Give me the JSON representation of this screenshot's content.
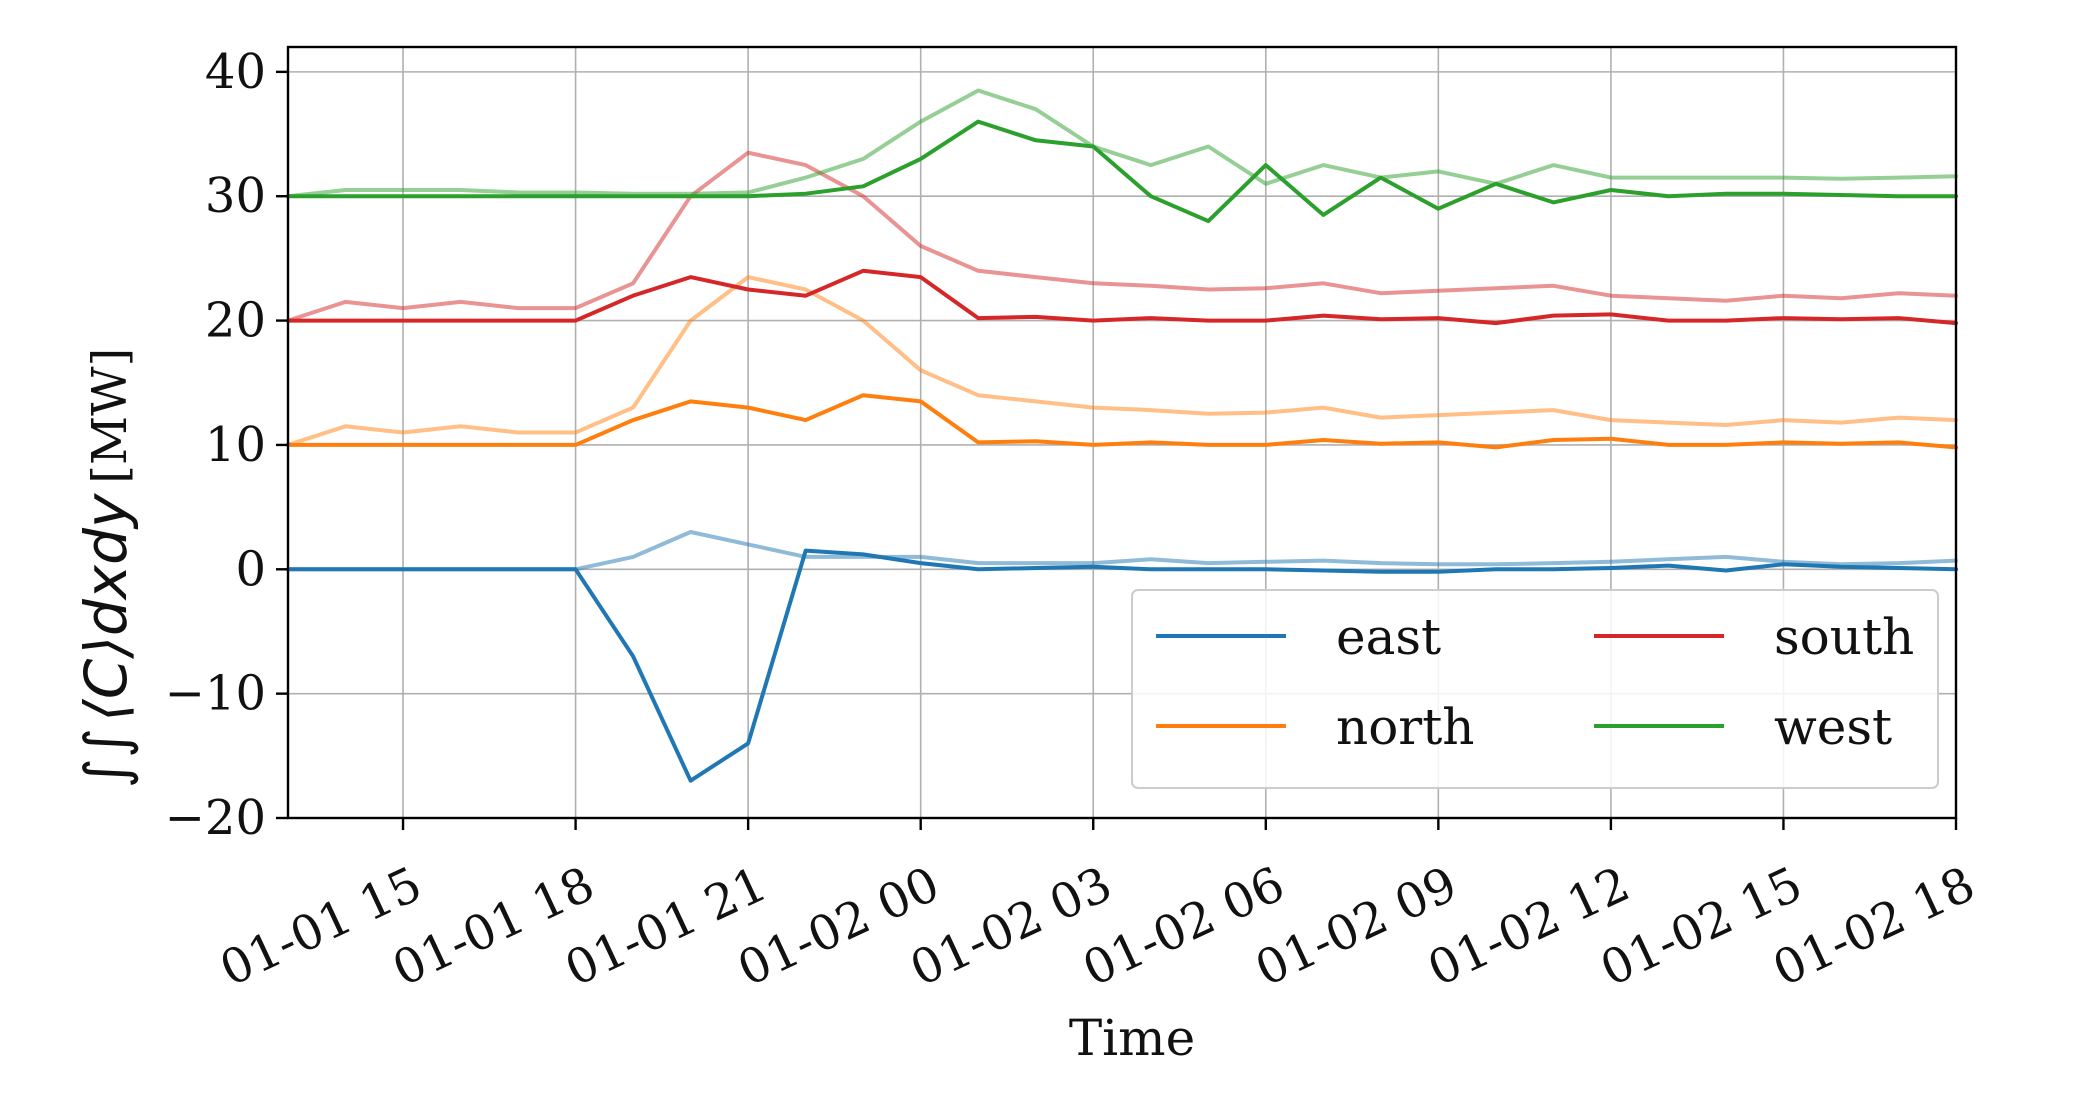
{
  "chart_data": {
    "type": "line",
    "xlabel": "Time",
    "ylabel": {
      "integral": "∫∫",
      "expression": "⟨C⟩dxdy",
      "unit": "[MW]"
    },
    "ylim": [
      -20,
      42
    ],
    "xlim": [
      "01-01 13:00",
      "01-02 18:00"
    ],
    "x_ticks": [
      "01-01 15",
      "01-01 18",
      "01-01 21",
      "01-02 00",
      "01-02 03",
      "01-02 06",
      "01-02 09",
      "01-02 12",
      "01-02 15",
      "01-02 18"
    ],
    "y_ticks": [
      -20,
      -10,
      0,
      10,
      20,
      30,
      40
    ],
    "grid": true,
    "legend": {
      "placement": "lower-right",
      "columns": 2,
      "entries": [
        "east",
        "south",
        "north",
        "west"
      ]
    },
    "x_hours": [
      13,
      14,
      15,
      16,
      17,
      18,
      19,
      20,
      21,
      22,
      23,
      24,
      25,
      26,
      27,
      28,
      29,
      30,
      31,
      32,
      33,
      34,
      35,
      36,
      37,
      38,
      39,
      40,
      41,
      42
    ],
    "series": [
      {
        "name": "east",
        "color": "#1f77b4",
        "opacity": 1,
        "values": [
          0,
          0,
          0,
          0,
          0,
          0,
          -7,
          -17,
          -14,
          1.5,
          1.2,
          0.5,
          0,
          0.1,
          0.2,
          0,
          0,
          0,
          -0.1,
          -0.2,
          -0.2,
          0,
          0,
          0.1,
          0.3,
          -0.1,
          0.4,
          0.2,
          0.1,
          0
        ]
      },
      {
        "name": "east (light)",
        "color": "#1f77b4",
        "opacity": 0.5,
        "values": [
          0,
          0,
          0,
          0,
          0,
          0,
          1,
          3,
          2,
          1,
          1,
          1,
          0.5,
          0.5,
          0.5,
          0.8,
          0.5,
          0.6,
          0.7,
          0.5,
          0.4,
          0.4,
          0.5,
          0.6,
          0.8,
          1,
          0.6,
          0.4,
          0.5,
          0.7
        ]
      },
      {
        "name": "north",
        "color": "#ff7f0e",
        "opacity": 1,
        "values": [
          10,
          10,
          10,
          10,
          10,
          10,
          12,
          13.5,
          13,
          12,
          14,
          13.5,
          10.2,
          10.3,
          10,
          10.2,
          10,
          10,
          10.4,
          10.1,
          10.2,
          9.8,
          10.4,
          10.5,
          10,
          10,
          10.2,
          10.1,
          10.2,
          9.8
        ]
      },
      {
        "name": "north (light)",
        "color": "#ff7f0e",
        "opacity": 0.5,
        "values": [
          10,
          11.5,
          11,
          11.5,
          11,
          11,
          13,
          20,
          23.5,
          22.5,
          20,
          16,
          14,
          13.5,
          13,
          12.8,
          12.5,
          12.6,
          13,
          12.2,
          12.4,
          12.6,
          12.8,
          12,
          11.8,
          11.6,
          12,
          11.8,
          12.2,
          12
        ]
      },
      {
        "name": "south",
        "color": "#d62728",
        "opacity": 1,
        "values": [
          20,
          20,
          20,
          20,
          20,
          20,
          22,
          23.5,
          22.5,
          22,
          24,
          23.5,
          20.2,
          20.3,
          20,
          20.2,
          20,
          20,
          20.4,
          20.1,
          20.2,
          19.8,
          20.4,
          20.5,
          20,
          20,
          20.2,
          20.1,
          20.2,
          19.8
        ]
      },
      {
        "name": "south (light)",
        "color": "#d62728",
        "opacity": 0.5,
        "values": [
          20,
          21.5,
          21,
          21.5,
          21,
          21,
          23,
          30,
          33.5,
          32.5,
          30,
          26,
          24,
          23.5,
          23,
          22.8,
          22.5,
          22.6,
          23,
          22.2,
          22.4,
          22.6,
          22.8,
          22,
          21.8,
          21.6,
          22,
          21.8,
          22.2,
          22
        ]
      },
      {
        "name": "west",
        "color": "#2ca02c",
        "opacity": 1,
        "values": [
          30,
          30,
          30,
          30,
          30,
          30,
          30,
          30,
          30,
          30.2,
          30.8,
          33,
          36,
          34.5,
          34,
          30,
          28,
          32.5,
          28.5,
          31.5,
          29,
          31,
          29.5,
          30.5,
          30,
          30.2,
          30.2,
          30.1,
          30,
          30
        ]
      },
      {
        "name": "west (light)",
        "color": "#2ca02c",
        "opacity": 0.5,
        "values": [
          30,
          30.5,
          30.5,
          30.5,
          30.3,
          30.3,
          30.2,
          30.2,
          30.3,
          31.5,
          33,
          36,
          38.5,
          37,
          34,
          32.5,
          34,
          31,
          32.5,
          31.5,
          32,
          31,
          32.5,
          31.5,
          31.5,
          31.5,
          31.5,
          31.4,
          31.5,
          31.6
        ]
      }
    ]
  }
}
